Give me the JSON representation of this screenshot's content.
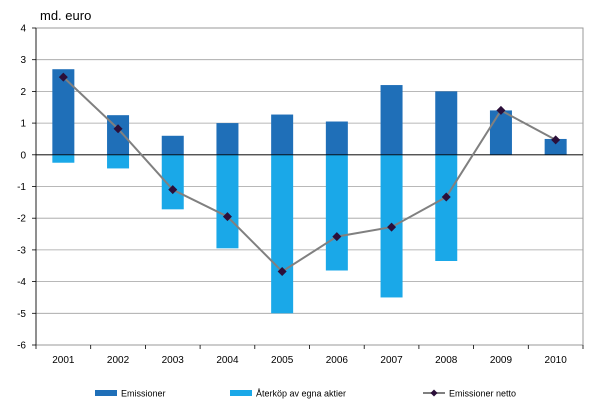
{
  "chart_data": {
    "type": "bar",
    "ylabel": "md. euro",
    "ylim": [
      -6,
      4
    ],
    "yticks": [
      4,
      3,
      2,
      1,
      0,
      -1,
      -2,
      -3,
      -4,
      -5,
      -6
    ],
    "categories": [
      "2001",
      "2002",
      "2003",
      "2004",
      "2005",
      "2006",
      "2007",
      "2008",
      "2009",
      "2010"
    ],
    "series": [
      {
        "name": "Emissioner",
        "kind": "bar",
        "color": "#1F6FB8",
        "values": [
          2.7,
          1.25,
          0.6,
          1.0,
          1.27,
          1.05,
          2.2,
          2.0,
          1.4,
          0.5
        ]
      },
      {
        "name": "Återköp av egna aktier",
        "kind": "bar",
        "color": "#1AA8E8",
        "values": [
          -0.25,
          -0.43,
          -1.72,
          -2.95,
          -5.0,
          -3.65,
          -4.5,
          -3.35,
          0.0,
          0.0
        ]
      },
      {
        "name": "Emissioner netto",
        "kind": "line",
        "color": "#808080",
        "marker_color": "#2B0F3A",
        "values": [
          2.45,
          0.82,
          -1.1,
          -1.95,
          -3.68,
          -2.58,
          -2.28,
          -1.33,
          1.4,
          0.47
        ]
      }
    ],
    "grid": true,
    "legend_position": "bottom"
  }
}
